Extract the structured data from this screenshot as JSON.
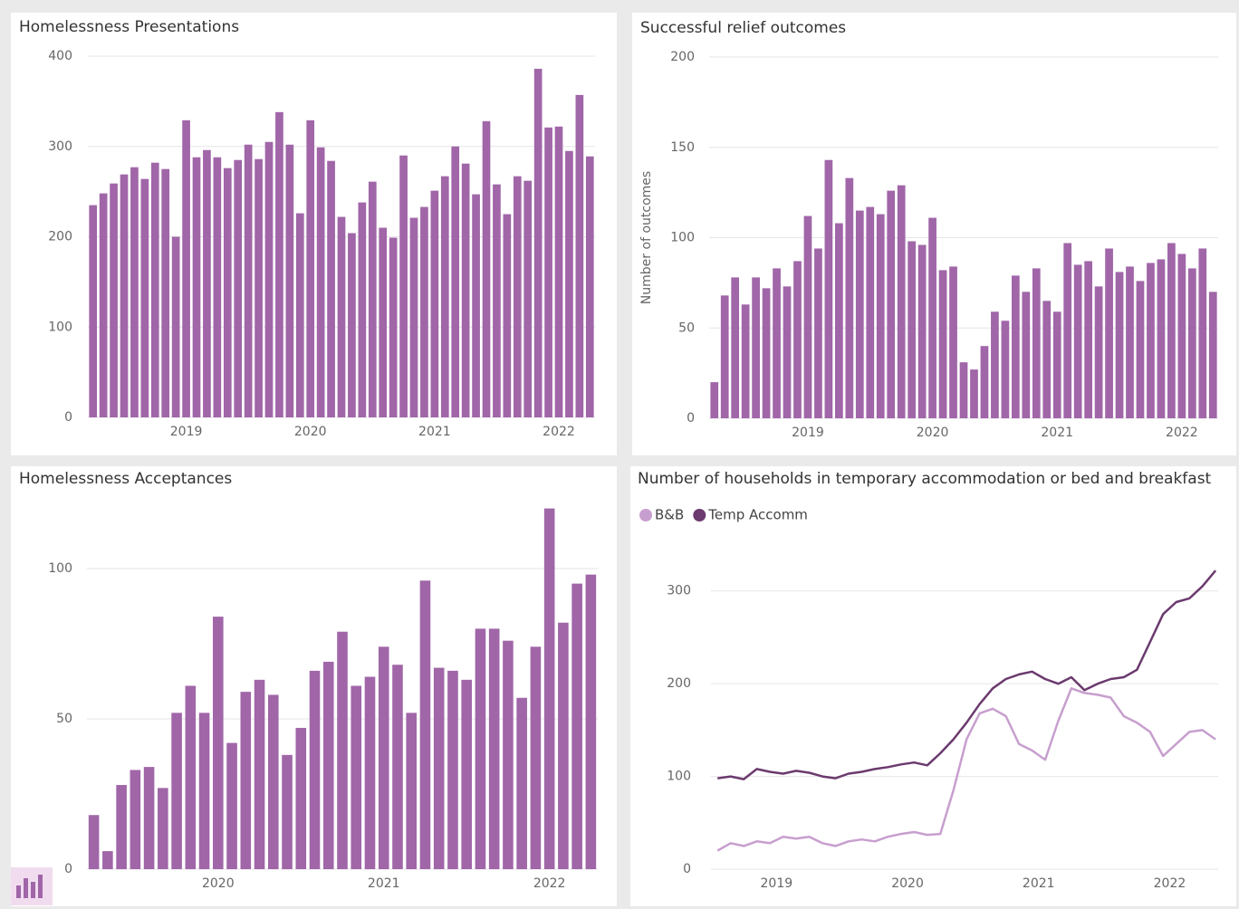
{
  "chart_data": [
    {
      "type": "bar",
      "title": "Homelessness Presentations",
      "color": "#a066a8",
      "grid": true,
      "categories": [
        null,
        null,
        null,
        null,
        null,
        null,
        null,
        null,
        null,
        "2019",
        null,
        null,
        null,
        null,
        null,
        null,
        null,
        null,
        null,
        null,
        null,
        "2020",
        null,
        null,
        null,
        null,
        null,
        null,
        null,
        null,
        null,
        null,
        null,
        "2021",
        null,
        null,
        null,
        null,
        null,
        null,
        null,
        null,
        null,
        null,
        null,
        "2022",
        null,
        null,
        null
      ],
      "values": [
        235,
        248,
        259,
        269,
        277,
        264,
        282,
        275,
        200,
        329,
        288,
        296,
        288,
        276,
        285,
        302,
        286,
        305,
        338,
        302,
        226,
        329,
        299,
        284,
        222,
        204,
        238,
        261,
        210,
        199,
        290,
        221,
        233,
        251,
        267,
        300,
        281,
        247,
        328,
        258,
        225,
        267,
        262,
        386,
        321,
        322,
        295,
        357,
        289
      ],
      "ylim": [
        0,
        400
      ],
      "yticks": [
        0,
        100,
        200,
        300,
        400
      ]
    },
    {
      "type": "bar",
      "title": "Successful relief outcomes",
      "y_label": "Number of outcomes",
      "color": "#a066a8",
      "grid": true,
      "categories": [
        null,
        null,
        null,
        null,
        null,
        null,
        null,
        null,
        null,
        "2019",
        null,
        null,
        null,
        null,
        null,
        null,
        null,
        null,
        null,
        null,
        null,
        "2020",
        null,
        null,
        null,
        null,
        null,
        null,
        null,
        null,
        null,
        null,
        null,
        "2021",
        null,
        null,
        null,
        null,
        null,
        null,
        null,
        null,
        null,
        null,
        null,
        "2022",
        null,
        null,
        null
      ],
      "values": [
        20,
        68,
        78,
        63,
        78,
        72,
        83,
        73,
        87,
        112,
        94,
        143,
        108,
        133,
        115,
        117,
        113,
        126,
        129,
        98,
        96,
        111,
        82,
        84,
        31,
        27,
        40,
        59,
        54,
        79,
        70,
        83,
        65,
        59,
        97,
        85,
        87,
        73,
        94,
        81,
        84,
        76,
        86,
        88,
        97,
        91,
        83,
        94,
        70
      ],
      "ylim": [
        0,
        200
      ],
      "yticks": [
        0,
        50,
        100,
        150,
        200
      ]
    },
    {
      "type": "bar",
      "title": "Homelessness Acceptances",
      "color": "#a066a8",
      "grid": true,
      "categories": [
        null,
        null,
        null,
        null,
        null,
        null,
        null,
        null,
        null,
        "2020",
        null,
        null,
        null,
        null,
        null,
        null,
        null,
        null,
        null,
        null,
        null,
        "2021",
        null,
        null,
        null,
        null,
        null,
        null,
        null,
        null,
        null,
        null,
        null,
        "2022",
        null,
        null,
        null
      ],
      "values": [
        18,
        6,
        28,
        33,
        34,
        27,
        52,
        61,
        52,
        84,
        42,
        59,
        63,
        58,
        38,
        47,
        66,
        69,
        79,
        61,
        64,
        74,
        68,
        52,
        96,
        67,
        66,
        63,
        80,
        80,
        76,
        57,
        74,
        120,
        82,
        95,
        98
      ],
      "ylim": [
        0,
        120
      ],
      "yticks": [
        0,
        50,
        100
      ]
    },
    {
      "type": "line",
      "title": "Number of households in temporary accommodation or bed and breakfast",
      "grid": true,
      "legend": "top-left",
      "x": [
        2018.55,
        2018.65,
        2018.75,
        2018.85,
        2018.95,
        2019.05,
        2019.15,
        2019.25,
        2019.35,
        2019.45,
        2019.55,
        2019.65,
        2019.75,
        2019.85,
        2019.95,
        2020.05,
        2020.15,
        2020.25,
        2020.35,
        2020.45,
        2020.55,
        2020.65,
        2020.75,
        2020.85,
        2020.95,
        2021.05,
        2021.15,
        2021.25,
        2021.35,
        2021.45,
        2021.55,
        2021.65,
        2021.75,
        2021.85,
        2021.95,
        2022.05,
        2022.15,
        2022.25,
        2022.35
      ],
      "series": [
        {
          "name": "B&B",
          "color": "#c79fce",
          "values": [
            20,
            28,
            25,
            30,
            28,
            35,
            33,
            35,
            28,
            25,
            30,
            32,
            30,
            35,
            38,
            40,
            37,
            38,
            85,
            140,
            168,
            173,
            165,
            135,
            128,
            118,
            160,
            195,
            190,
            188,
            185,
            165,
            158,
            148,
            122,
            135,
            148,
            150,
            140
          ]
        },
        {
          "name": "Temp Accomm",
          "color": "#6b3a6e",
          "values": [
            98,
            100,
            97,
            108,
            105,
            103,
            106,
            104,
            100,
            98,
            103,
            105,
            108,
            110,
            113,
            115,
            112,
            125,
            140,
            158,
            178,
            195,
            205,
            210,
            213,
            205,
            200,
            207,
            193,
            200,
            205,
            207,
            215,
            245,
            275,
            288,
            292,
            305,
            322
          ]
        }
      ],
      "xlim": [
        2018.5,
        2022.37
      ],
      "xticks": [
        2019,
        2020,
        2021,
        2022
      ],
      "ylim": [
        0,
        330
      ],
      "yticks": [
        0,
        100,
        200,
        300
      ]
    }
  ]
}
